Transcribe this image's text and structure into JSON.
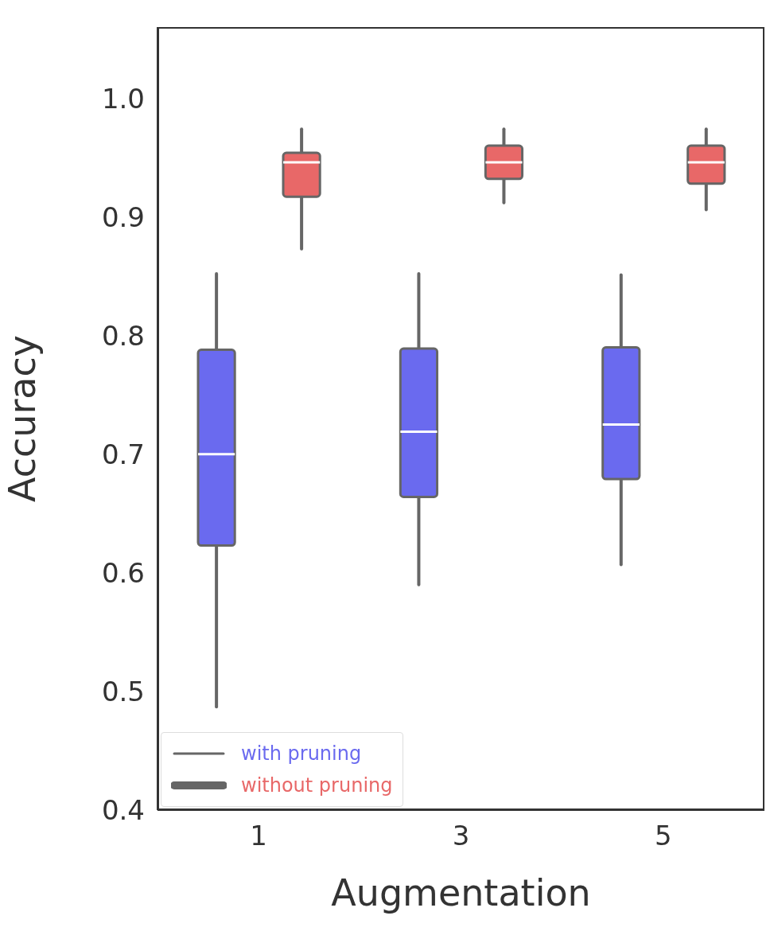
{
  "chart_data": {
    "type": "box",
    "xlabel": "Augmentation",
    "ylabel": "Accuracy",
    "categories": [
      "1",
      "3",
      "5"
    ],
    "series": [
      {
        "name": "with pruning",
        "color": "#6a6aef",
        "boxes": [
          {
            "low": 0.487,
            "q1": 0.623,
            "median": 0.7,
            "q3": 0.788,
            "high": 0.852
          },
          {
            "low": 0.59,
            "q1": 0.664,
            "median": 0.719,
            "q3": 0.789,
            "high": 0.852
          },
          {
            "low": 0.607,
            "q1": 0.679,
            "median": 0.725,
            "q3": 0.79,
            "high": 0.851
          }
        ]
      },
      {
        "name": "without pruning",
        "color": "#e86868",
        "boxes": [
          {
            "low": 0.873,
            "q1": 0.917,
            "median": 0.946,
            "q3": 0.954,
            "high": 0.974
          },
          {
            "low": 0.912,
            "q1": 0.932,
            "median": 0.946,
            "q3": 0.96,
            "high": 0.974
          },
          {
            "low": 0.906,
            "q1": 0.928,
            "median": 0.946,
            "q3": 0.96,
            "high": 0.974
          }
        ]
      }
    ],
    "ylim": [
      0.4,
      1.06
    ],
    "yticks": [
      0.4,
      0.5,
      0.6,
      0.7,
      0.8,
      0.9,
      {
        "value": 1,
        "label": "1.0"
      }
    ],
    "legend": "bottom left"
  }
}
